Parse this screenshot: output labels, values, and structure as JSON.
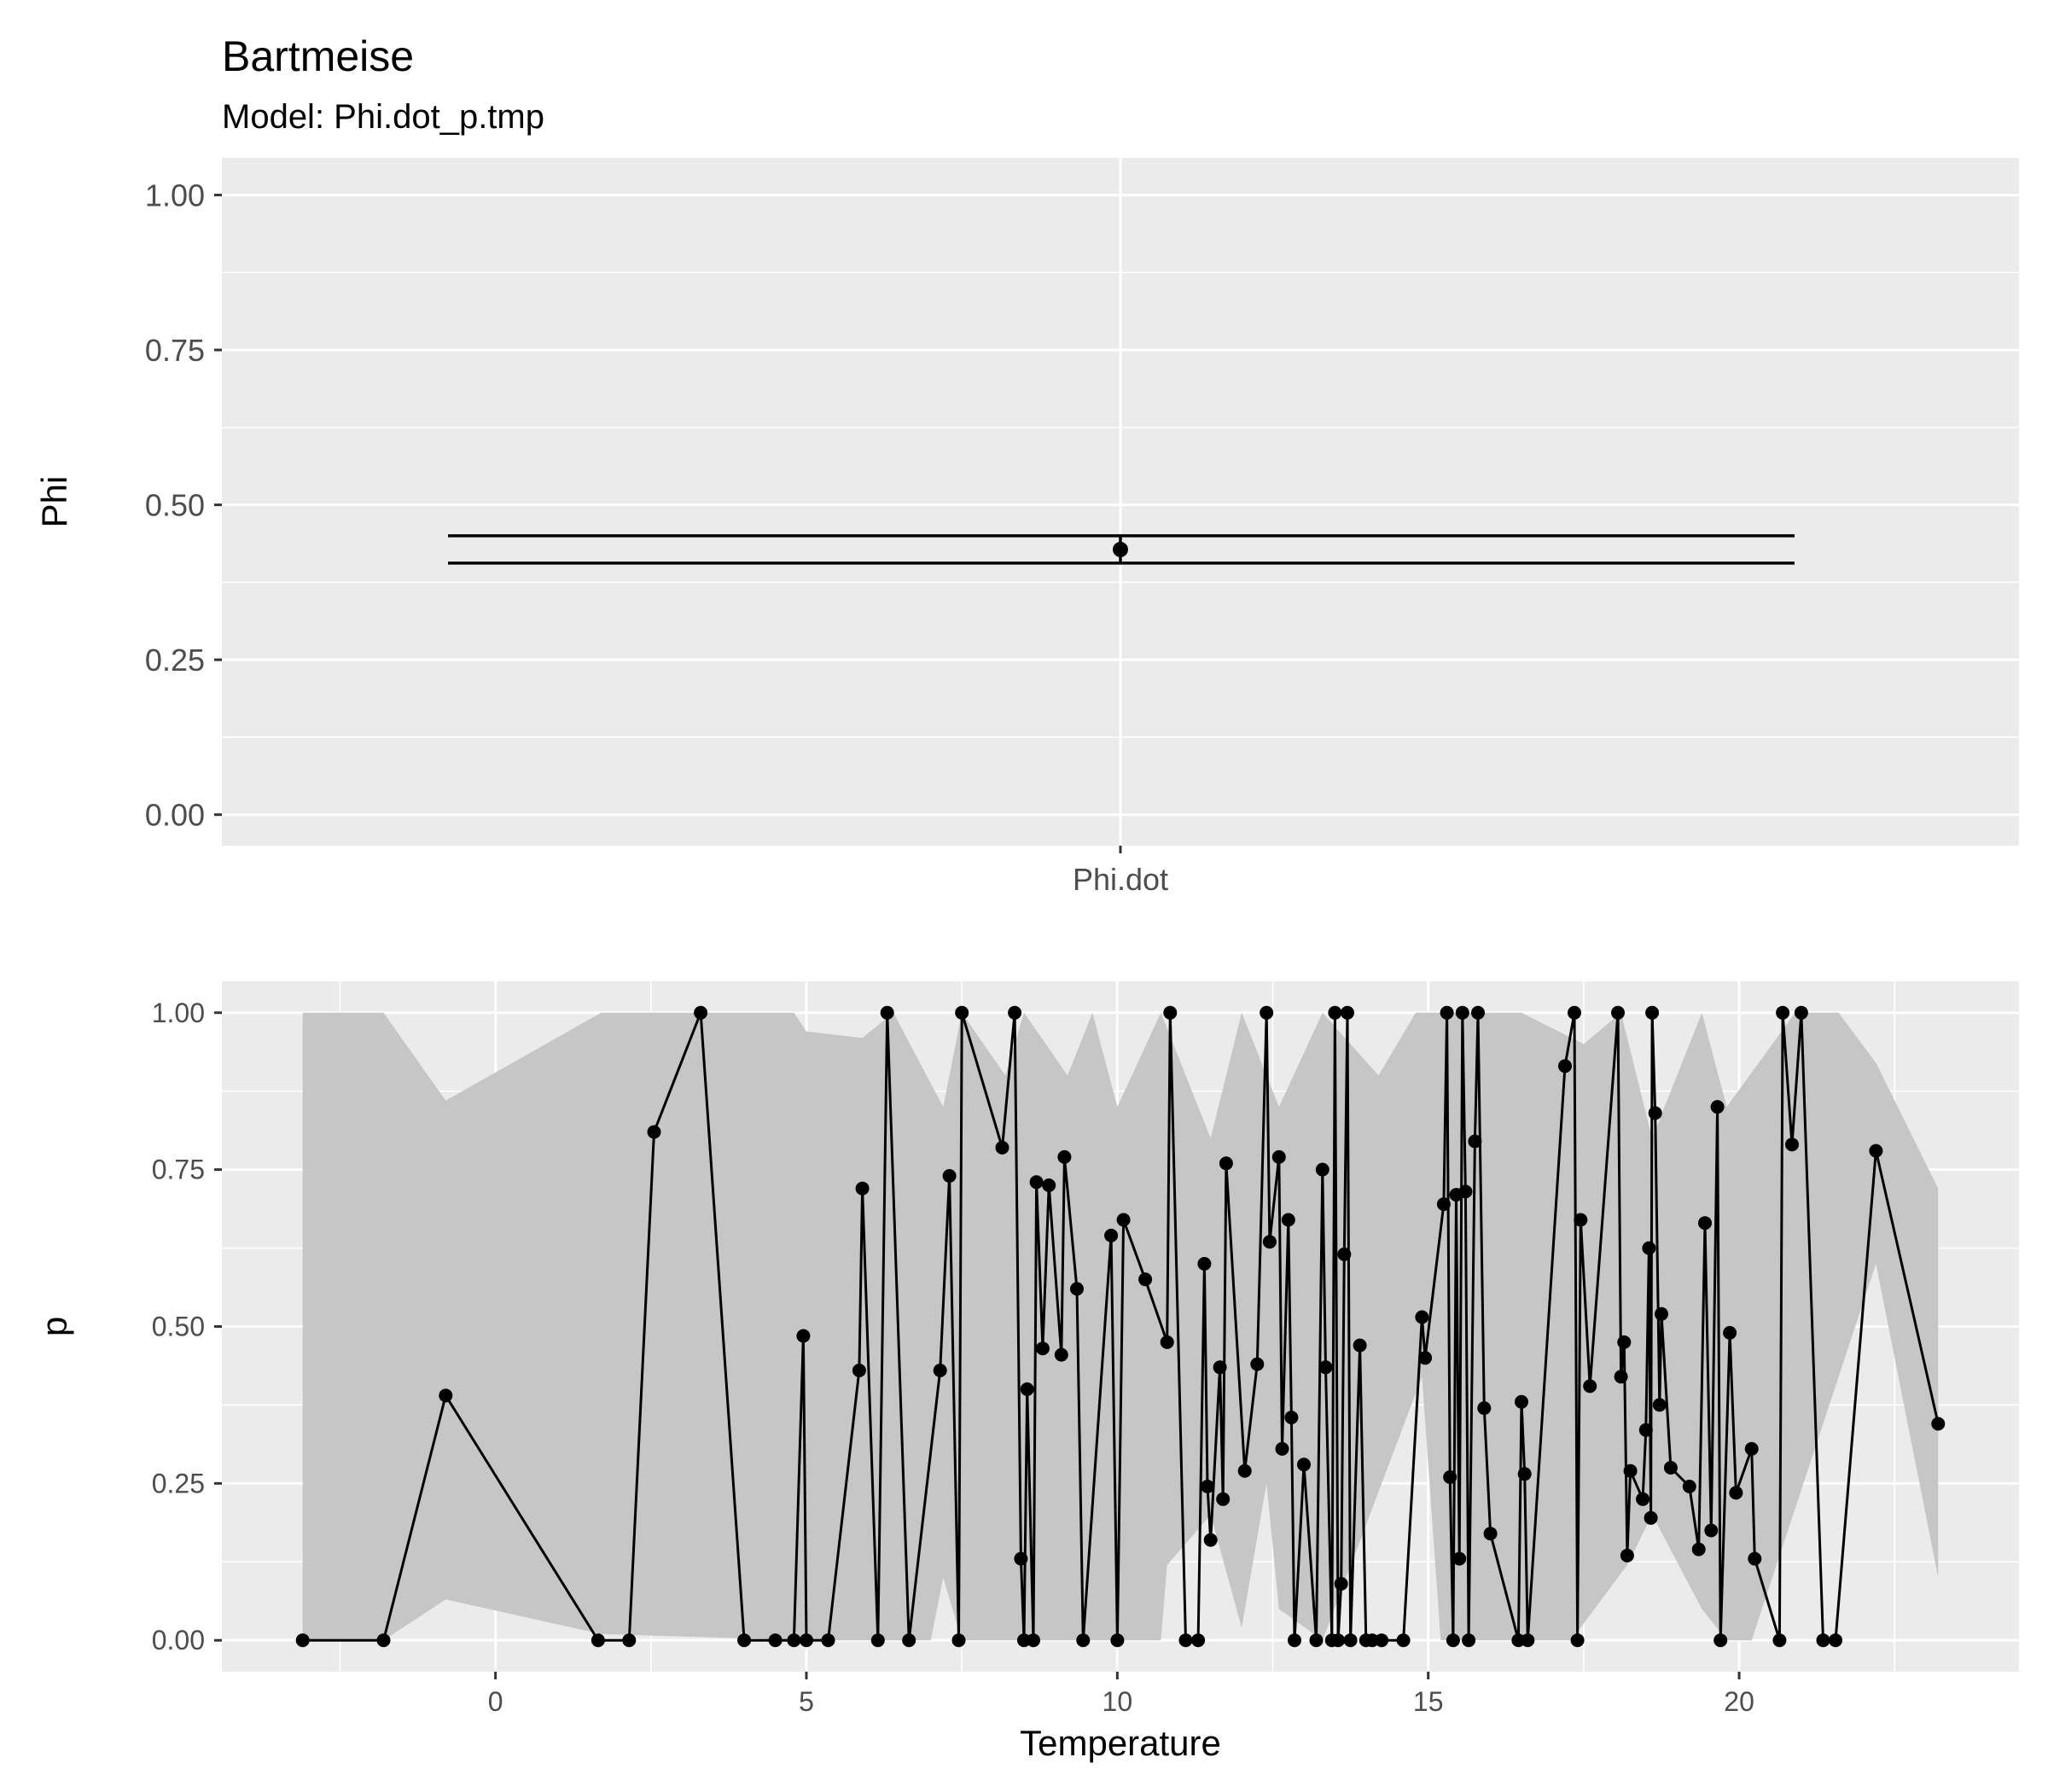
{
  "chart_data": [
    {
      "type": "errorbar",
      "title": "Bartmeise",
      "subtitle": "Model: Phi.dot_p.tmp",
      "xlabel": "",
      "ylabel": "Phi",
      "categories": [
        "Phi.dot"
      ],
      "estimate": [
        0.428
      ],
      "lower": [
        0.406
      ],
      "upper": [
        0.45
      ],
      "ylim": [
        -0.05,
        1.06
      ],
      "yticks": [
        "0.00",
        "0.25",
        "0.50",
        "0.75",
        "1.00"
      ],
      "grid": true
    },
    {
      "type": "line",
      "xlabel": "Temperature",
      "ylabel": "p",
      "xlim": [
        -4.4,
        24.5
      ],
      "ylim": [
        -0.05,
        1.05
      ],
      "xticks": [
        "0",
        "5",
        "10",
        "15",
        "20"
      ],
      "yticks": [
        "0.00",
        "0.25",
        "0.50",
        "0.75",
        "1.00"
      ],
      "grid": true,
      "ribbon": {
        "upper": [
          [
            -3.1,
            1.0
          ],
          [
            -1.8,
            1.0
          ],
          [
            -0.8,
            0.86
          ],
          [
            1.7,
            1.0
          ],
          [
            4.8,
            1.0
          ],
          [
            5.0,
            0.97
          ],
          [
            5.9,
            0.96
          ],
          [
            6.4,
            1.0
          ],
          [
            7.2,
            0.85
          ],
          [
            7.5,
            1.0
          ],
          [
            8.2,
            0.9
          ],
          [
            8.5,
            1.0
          ],
          [
            9.2,
            0.9
          ],
          [
            9.6,
            1.0
          ],
          [
            10.0,
            0.85
          ],
          [
            10.7,
            1.0
          ],
          [
            11.5,
            0.8
          ],
          [
            12.0,
            1.0
          ],
          [
            12.6,
            0.85
          ],
          [
            13.3,
            1.0
          ],
          [
            14.2,
            0.9
          ],
          [
            14.8,
            1.0
          ],
          [
            16.5,
            1.0
          ],
          [
            17.5,
            0.95
          ],
          [
            18.1,
            1.0
          ],
          [
            18.6,
            0.8
          ],
          [
            19.4,
            1.0
          ],
          [
            19.8,
            0.85
          ],
          [
            20.9,
            1.0
          ],
          [
            21.6,
            1.0
          ],
          [
            22.2,
            0.92
          ],
          [
            23.2,
            0.72
          ]
        ],
        "lower": [
          [
            -3.1,
            0.0
          ],
          [
            -1.8,
            0.0
          ],
          [
            -0.8,
            0.065
          ],
          [
            1.7,
            0.01
          ],
          [
            5.0,
            0.0
          ],
          [
            7.0,
            0.0
          ],
          [
            7.2,
            0.1
          ],
          [
            7.5,
            0.0
          ],
          [
            10.7,
            0.0
          ],
          [
            10.8,
            0.12
          ],
          [
            11.5,
            0.2
          ],
          [
            12.0,
            0.02
          ],
          [
            12.4,
            0.25
          ],
          [
            12.6,
            0.05
          ],
          [
            13.3,
            0.0
          ],
          [
            14.9,
            0.42
          ],
          [
            15.2,
            0.0
          ],
          [
            17.3,
            0.0
          ],
          [
            18.2,
            0.12
          ],
          [
            18.6,
            0.2
          ],
          [
            19.4,
            0.05
          ],
          [
            19.8,
            0.0
          ],
          [
            20.2,
            0.0
          ],
          [
            22.2,
            0.6
          ],
          [
            23.2,
            0.1
          ]
        ]
      },
      "points": [
        [
          -3.1,
          0.0
        ],
        [
          -1.8,
          0.0
        ],
        [
          -0.8,
          0.39
        ],
        [
          1.65,
          0.0
        ],
        [
          2.15,
          0.0
        ],
        [
          2.55,
          0.81
        ],
        [
          3.3,
          1.0
        ],
        [
          4.0,
          0.0
        ],
        [
          4.5,
          0.0
        ],
        [
          4.8,
          0.0
        ],
        [
          4.95,
          0.485
        ],
        [
          5.0,
          0.0
        ],
        [
          5.35,
          0.0
        ],
        [
          5.85,
          0.43
        ],
        [
          5.9,
          0.72
        ],
        [
          6.15,
          0.0
        ],
        [
          6.3,
          1.0
        ],
        [
          6.65,
          0.0
        ],
        [
          7.15,
          0.43
        ],
        [
          7.3,
          0.74
        ],
        [
          7.45,
          0.0
        ],
        [
          7.5,
          1.0
        ],
        [
          8.15,
          0.785
        ],
        [
          8.35,
          1.0
        ],
        [
          8.45,
          0.13
        ],
        [
          8.5,
          0.0
        ],
        [
          8.55,
          0.4
        ],
        [
          8.65,
          0.0
        ],
        [
          8.7,
          0.73
        ],
        [
          8.8,
          0.465
        ],
        [
          8.9,
          0.725
        ],
        [
          9.1,
          0.455
        ],
        [
          9.15,
          0.77
        ],
        [
          9.35,
          0.56
        ],
        [
          9.45,
          0.0
        ],
        [
          9.9,
          0.645
        ],
        [
          10.0,
          0.0
        ],
        [
          10.1,
          0.67
        ],
        [
          10.45,
          0.575
        ],
        [
          10.8,
          0.475
        ],
        [
          10.85,
          1.0
        ],
        [
          11.1,
          0.0
        ],
        [
          11.3,
          0.0
        ],
        [
          11.4,
          0.6
        ],
        [
          11.45,
          0.245
        ],
        [
          11.5,
          0.16
        ],
        [
          11.65,
          0.435
        ],
        [
          11.7,
          0.225
        ],
        [
          11.75,
          0.76
        ],
        [
          12.05,
          0.27
        ],
        [
          12.25,
          0.44
        ],
        [
          12.4,
          1.0
        ],
        [
          12.45,
          0.635
        ],
        [
          12.6,
          0.77
        ],
        [
          12.65,
          0.305
        ],
        [
          12.75,
          0.67
        ],
        [
          12.8,
          0.355
        ],
        [
          12.85,
          0.0
        ],
        [
          13.0,
          0.28
        ],
        [
          13.2,
          0.0
        ],
        [
          13.3,
          0.75
        ],
        [
          13.35,
          0.435
        ],
        [
          13.45,
          0.0
        ],
        [
          13.5,
          1.0
        ],
        [
          13.55,
          0.0
        ],
        [
          13.6,
          0.09
        ],
        [
          13.65,
          0.615
        ],
        [
          13.7,
          1.0
        ],
        [
          13.75,
          0.0
        ],
        [
          13.9,
          0.47
        ],
        [
          14.0,
          0.0
        ],
        [
          14.1,
          0.0
        ],
        [
          14.25,
          0.0
        ],
        [
          14.6,
          0.0
        ],
        [
          14.9,
          0.515
        ],
        [
          14.95,
          0.45
        ],
        [
          15.25,
          0.695
        ],
        [
          15.3,
          1.0
        ],
        [
          15.35,
          0.26
        ],
        [
          15.4,
          0.0
        ],
        [
          15.45,
          0.71
        ],
        [
          15.5,
          0.13
        ],
        [
          15.55,
          1.0
        ],
        [
          15.6,
          0.715
        ],
        [
          15.65,
          0.0
        ],
        [
          15.75,
          0.795
        ],
        [
          15.8,
          1.0
        ],
        [
          15.9,
          0.37
        ],
        [
          16.0,
          0.17
        ],
        [
          16.45,
          0.0
        ],
        [
          16.5,
          0.38
        ],
        [
          16.55,
          0.265
        ],
        [
          16.6,
          0.0
        ],
        [
          17.2,
          0.915
        ],
        [
          17.35,
          1.0
        ],
        [
          17.4,
          0.0
        ],
        [
          17.45,
          0.67
        ],
        [
          17.6,
          0.405
        ],
        [
          18.05,
          1.0
        ],
        [
          18.1,
          0.42
        ],
        [
          18.15,
          0.475
        ],
        [
          18.2,
          0.135
        ],
        [
          18.25,
          0.27
        ],
        [
          18.45,
          0.225
        ],
        [
          18.5,
          0.335
        ],
        [
          18.55,
          0.625
        ],
        [
          18.58,
          0.195
        ],
        [
          18.6,
          1.0
        ],
        [
          18.65,
          0.84
        ],
        [
          18.72,
          0.375
        ],
        [
          18.75,
          0.52
        ],
        [
          18.9,
          0.275
        ],
        [
          19.2,
          0.245
        ],
        [
          19.35,
          0.145
        ],
        [
          19.45,
          0.665
        ],
        [
          19.55,
          0.175
        ],
        [
          19.65,
          0.85
        ],
        [
          19.7,
          0.0
        ],
        [
          19.85,
          0.49
        ],
        [
          19.95,
          0.235
        ],
        [
          20.2,
          0.305
        ],
        [
          20.25,
          0.13
        ],
        [
          20.65,
          0.0
        ],
        [
          20.7,
          1.0
        ],
        [
          20.85,
          0.79
        ],
        [
          21.0,
          1.0
        ],
        [
          21.35,
          0.0
        ],
        [
          21.55,
          0.0
        ],
        [
          22.2,
          0.78
        ],
        [
          23.2,
          0.345
        ]
      ]
    }
  ],
  "colors": {
    "panel": "#ebebeb",
    "grid": "#ffffff",
    "ribbon": "#c6c6c6",
    "series": "#000000"
  }
}
